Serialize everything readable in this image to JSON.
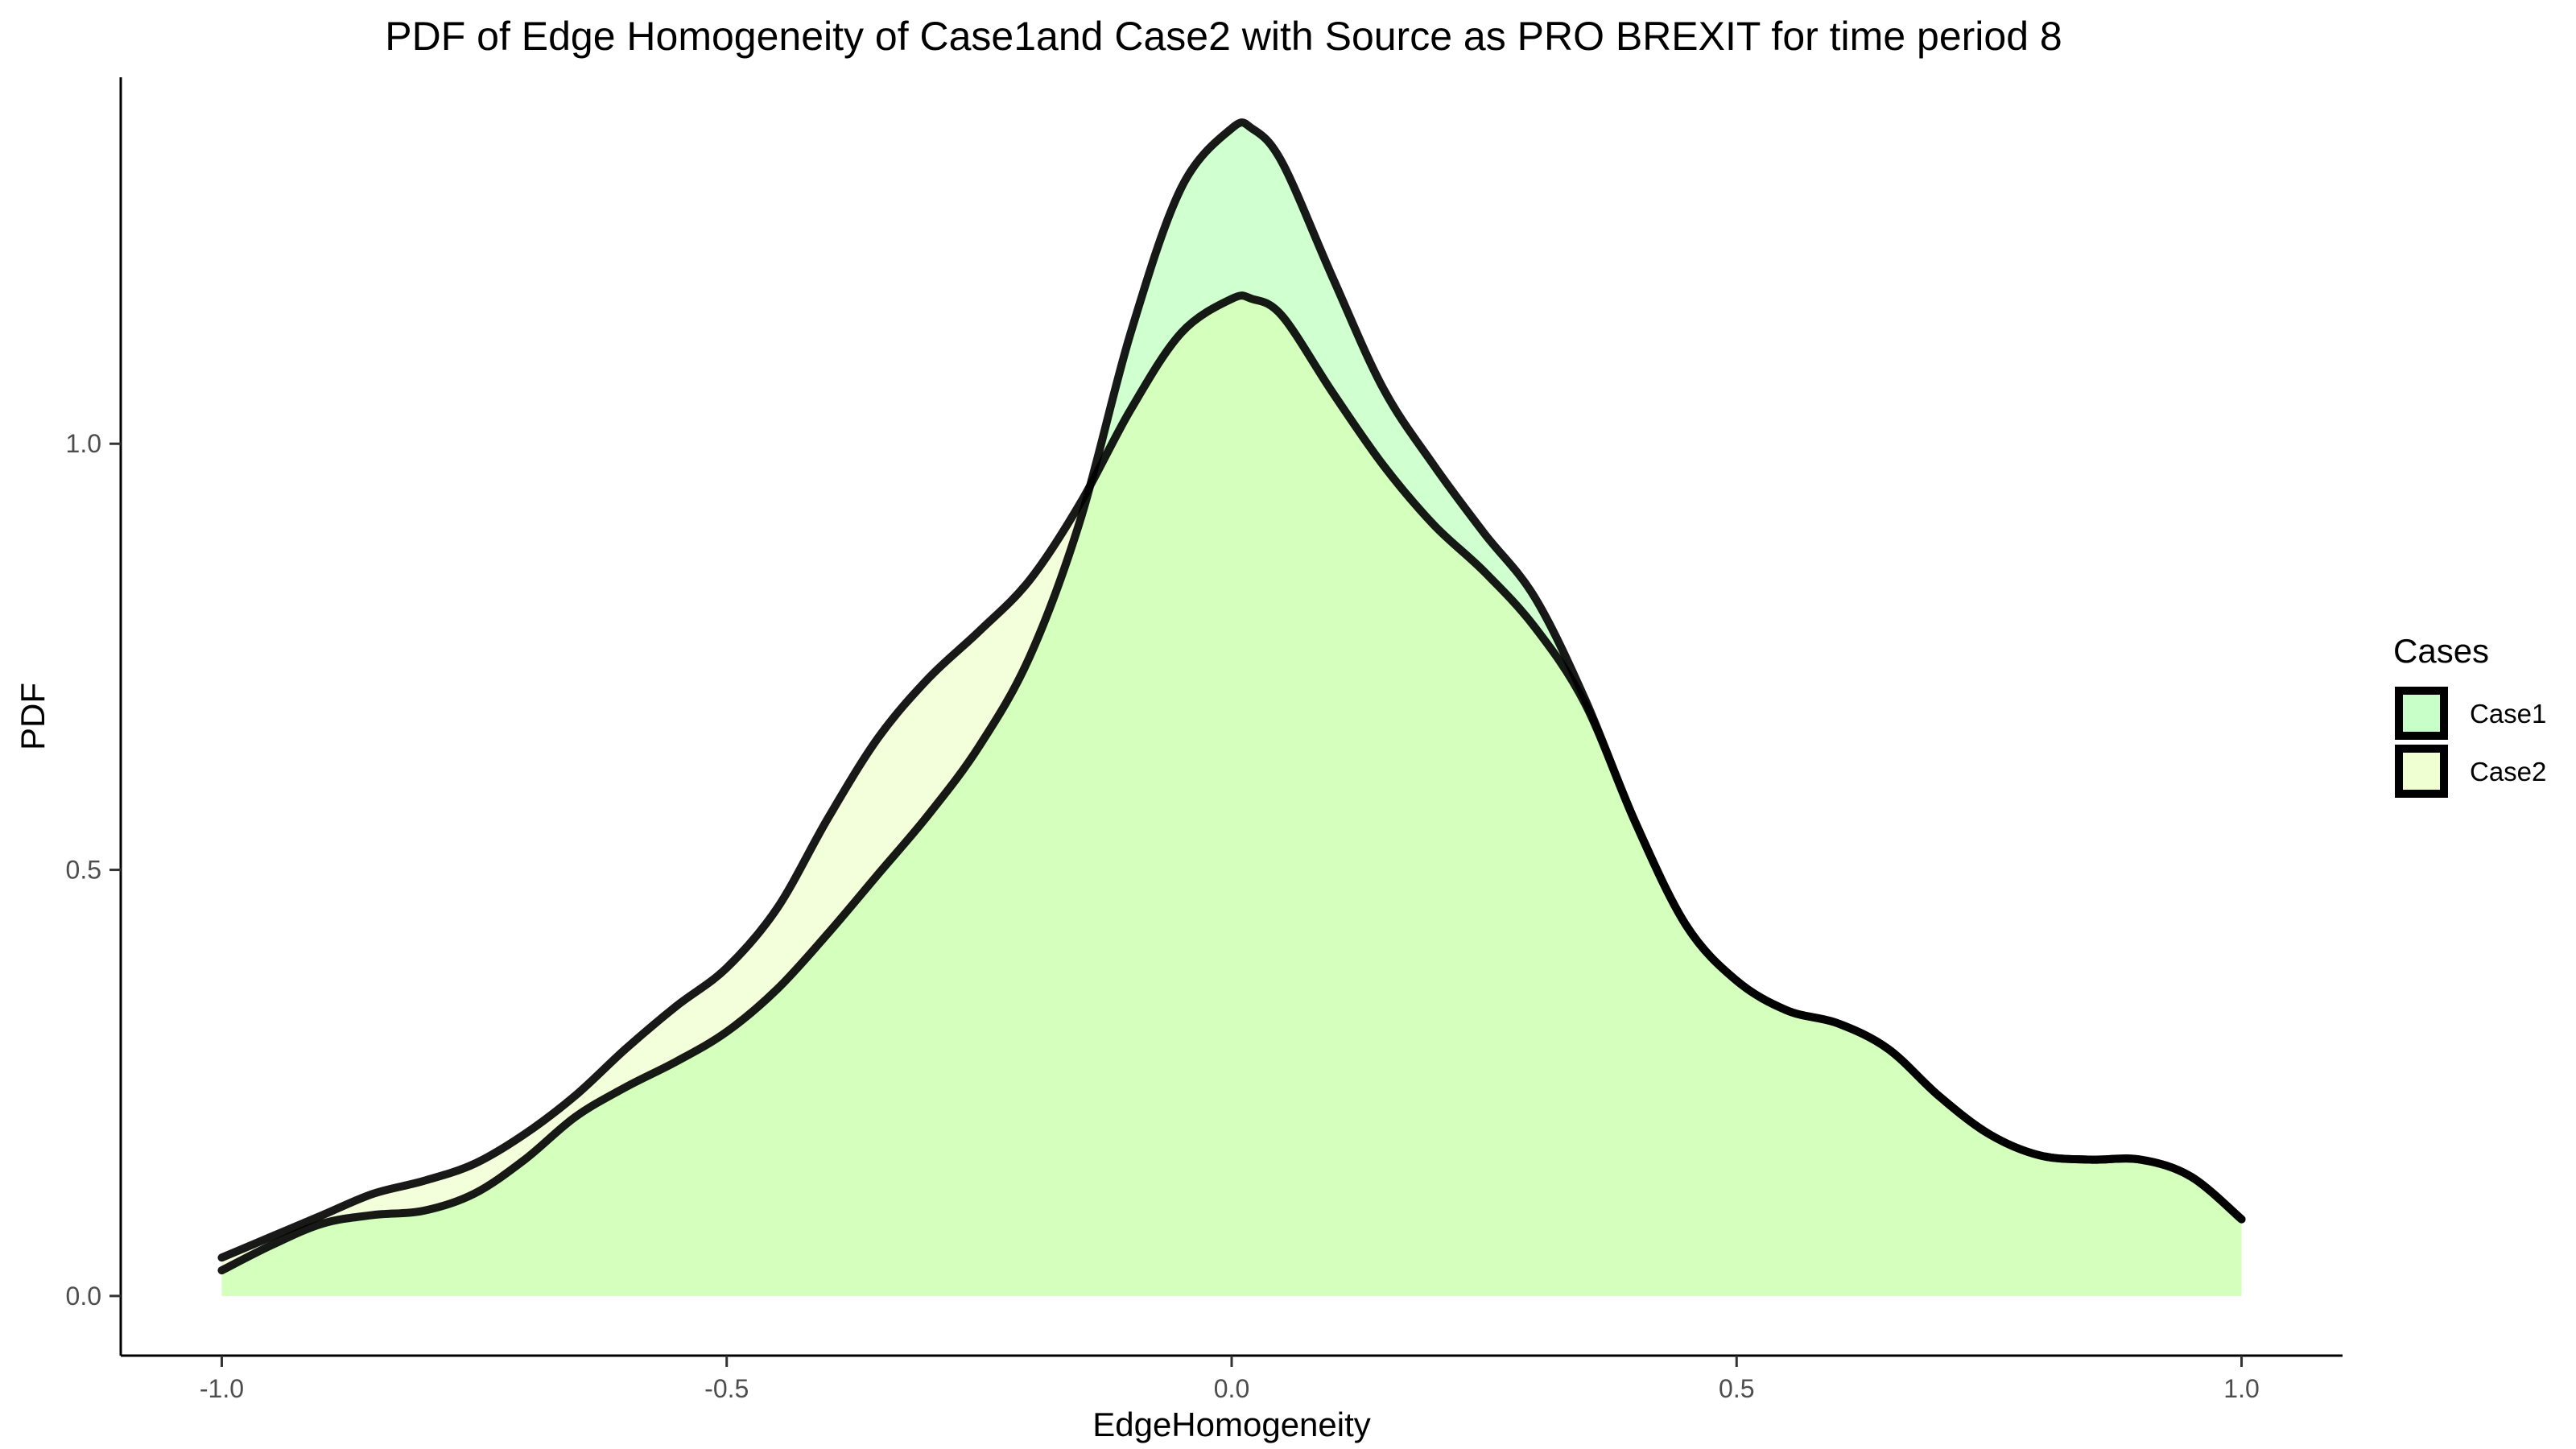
{
  "chart_data": {
    "type": "area",
    "title": "PDF of Edge Homogeneity of Case1and Case2 with Source as PRO BREXIT for time period 8",
    "xlabel": "EdgeHomogeneity",
    "ylabel": "PDF",
    "xlim": [
      -1.1,
      1.1
    ],
    "ylim": [
      -0.07,
      1.43
    ],
    "x_ticks": [
      -1.0,
      -0.5,
      0.0,
      0.5,
      1.0
    ],
    "x_tick_labels": [
      "-1.0",
      "-0.5",
      "0.0",
      "0.5",
      "1.0"
    ],
    "y_ticks": [
      0.0,
      0.5,
      1.0
    ],
    "y_tick_labels": [
      "0.0",
      "0.5",
      "1.0"
    ],
    "grid": false,
    "legend": {
      "title": "Cases",
      "position": "right"
    },
    "series": [
      {
        "name": "Case1",
        "fill": "#aaffaa",
        "fill_opacity": 0.55,
        "stroke": "#000000",
        "x": [
          -1.0,
          -0.95,
          -0.9,
          -0.85,
          -0.8,
          -0.75,
          -0.7,
          -0.65,
          -0.6,
          -0.55,
          -0.5,
          -0.45,
          -0.4,
          -0.35,
          -0.3,
          -0.25,
          -0.2,
          -0.15,
          -0.1,
          -0.05,
          0.0,
          0.02,
          0.05,
          0.1,
          0.15,
          0.2,
          0.25,
          0.3,
          0.35,
          0.4,
          0.45,
          0.5,
          0.55,
          0.6,
          0.65,
          0.7,
          0.75,
          0.8,
          0.85,
          0.9,
          0.95,
          1.0
        ],
        "values": [
          0.03,
          0.06,
          0.085,
          0.095,
          0.1,
          0.12,
          0.16,
          0.21,
          0.245,
          0.275,
          0.31,
          0.36,
          0.425,
          0.495,
          0.565,
          0.645,
          0.75,
          0.91,
          1.13,
          1.3,
          1.37,
          1.37,
          1.33,
          1.195,
          1.065,
          0.975,
          0.895,
          0.82,
          0.7,
          0.555,
          0.435,
          0.37,
          0.335,
          0.32,
          0.29,
          0.235,
          0.19,
          0.165,
          0.16,
          0.16,
          0.14,
          0.09
        ]
      },
      {
        "name": "Case2",
        "fill": "#ddff99",
        "fill_opacity": 0.35,
        "stroke": "#000000",
        "x": [
          -1.0,
          -0.95,
          -0.9,
          -0.85,
          -0.8,
          -0.75,
          -0.7,
          -0.65,
          -0.6,
          -0.55,
          -0.5,
          -0.45,
          -0.4,
          -0.35,
          -0.3,
          -0.25,
          -0.2,
          -0.15,
          -0.1,
          -0.05,
          0.0,
          0.02,
          0.05,
          0.1,
          0.15,
          0.2,
          0.25,
          0.3,
          0.35,
          0.4,
          0.45,
          0.5,
          0.55,
          0.6,
          0.65,
          0.7,
          0.75,
          0.8,
          0.85,
          0.9,
          0.95,
          1.0
        ],
        "values": [
          0.045,
          0.07,
          0.095,
          0.12,
          0.135,
          0.155,
          0.19,
          0.235,
          0.29,
          0.34,
          0.385,
          0.455,
          0.56,
          0.655,
          0.725,
          0.78,
          0.84,
          0.93,
          1.04,
          1.13,
          1.17,
          1.17,
          1.15,
          1.06,
          0.975,
          0.905,
          0.85,
          0.785,
          0.695,
          0.555,
          0.435,
          0.37,
          0.335,
          0.32,
          0.29,
          0.235,
          0.19,
          0.165,
          0.16,
          0.16,
          0.14,
          0.09
        ]
      }
    ]
  }
}
